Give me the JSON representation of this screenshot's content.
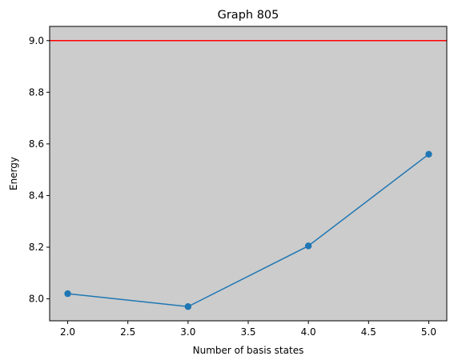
{
  "chart_data": {
    "type": "line",
    "title": "Graph 805",
    "xlabel": "Number of basis states",
    "ylabel": "Energy",
    "xlim": [
      1.85,
      5.15
    ],
    "ylim": [
      7.915,
      9.055
    ],
    "x_ticks": [
      "2.0",
      "2.5",
      "3.0",
      "3.5",
      "4.0",
      "4.5",
      "5.0"
    ],
    "y_ticks": [
      "8.0",
      "8.2",
      "8.4",
      "8.6",
      "8.8",
      "9.0"
    ],
    "grid": false,
    "legend": "none",
    "plot_background": "#cccccc",
    "series": [
      {
        "x": [
          2,
          3,
          4,
          5
        ],
        "values": [
          8.02,
          7.97,
          8.205,
          8.56
        ],
        "color": "#1f77b4",
        "marker": "circle"
      }
    ],
    "reference_lines": [
      {
        "orientation": "horizontal",
        "y": 9.0,
        "color": "#ff0000"
      }
    ]
  }
}
